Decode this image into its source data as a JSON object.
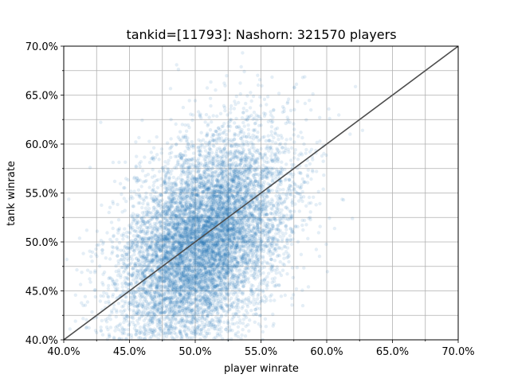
{
  "chart_data": {
    "type": "scatter",
    "title": "tankid=[11793]: Nashorn: 321570 players",
    "xlabel": "player winrate",
    "ylabel": "tank winrate",
    "xlim": [
      0.4,
      0.7
    ],
    "ylim": [
      0.4,
      0.7
    ],
    "x_major_ticks": [
      0.4,
      0.45,
      0.5,
      0.55,
      0.6,
      0.65,
      0.7
    ],
    "x_tick_labels": [
      "40.0%",
      "45.0%",
      "50.0%",
      "55.0%",
      "60.0%",
      "65.0%",
      "70.0%"
    ],
    "y_major_ticks": [
      0.4,
      0.45,
      0.5,
      0.55,
      0.6,
      0.65,
      0.7
    ],
    "y_tick_labels": [
      "40.0%",
      "45.0%",
      "50.0%",
      "55.0%",
      "60.0%",
      "65.0%",
      "70.0%"
    ],
    "minor_tick_step": 0.025,
    "grid": true,
    "point_color": "#1f77b4",
    "point_alpha": 0.12,
    "reference_line": {
      "from": [
        0.4,
        0.4
      ],
      "to": [
        0.7,
        0.7
      ],
      "color": "#4d4d4d"
    },
    "point_count": 321570,
    "distribution": {
      "center": [
        0.505,
        0.5
      ],
      "std": [
        0.032,
        0.055
      ],
      "correlation": 0.42
    }
  }
}
